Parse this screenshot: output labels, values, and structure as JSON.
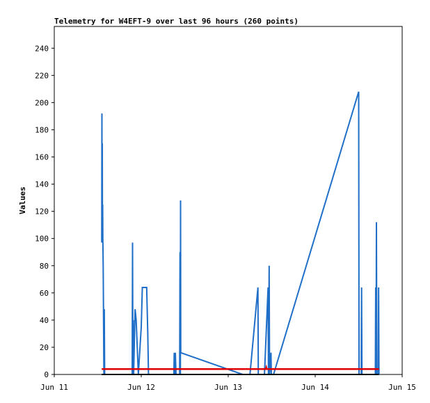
{
  "chart_data": {
    "type": "line",
    "title": "Telemetry for W4EFT-9 over last 96 hours (260 points)",
    "xlabel": "",
    "ylabel": "Values",
    "x_ticks": [
      "Jun 11",
      "Jun 12",
      "Jun 13",
      "Jun 14",
      "Jun 15"
    ],
    "y_ticks": [
      "0",
      "20",
      "40",
      "60",
      "80",
      "100",
      "120",
      "140",
      "160",
      "180",
      "200",
      "220",
      "240"
    ],
    "xlim": [
      0,
      96
    ],
    "ylim": [
      0,
      256
    ],
    "grid": false,
    "legend": "none",
    "series": [
      {
        "color": "#1f6fc8",
        "points": [
          [
            13.1,
            97
          ],
          [
            13.15,
            192
          ],
          [
            13.2,
            97
          ],
          [
            13.25,
            170
          ],
          [
            13.3,
            100
          ],
          [
            13.35,
            125
          ],
          [
            13.4,
            100
          ],
          [
            13.5,
            80
          ],
          [
            13.6,
            40
          ],
          [
            13.7,
            0
          ],
          [
            13.8,
            48
          ],
          [
            13.9,
            0
          ],
          [
            21.5,
            0
          ],
          [
            21.6,
            97
          ],
          [
            21.7,
            0
          ],
          [
            21.8,
            40
          ],
          [
            21.9,
            0
          ],
          [
            22.3,
            48
          ],
          [
            22.6,
            40
          ],
          [
            23.2,
            0
          ],
          [
            24.0,
            35
          ],
          [
            24.3,
            64
          ],
          [
            25.5,
            64
          ],
          [
            25.8,
            30
          ],
          [
            26.0,
            0
          ],
          [
            33.0,
            0
          ],
          [
            33.1,
            16
          ],
          [
            33.3,
            0
          ],
          [
            33.4,
            16
          ],
          [
            33.6,
            0
          ],
          [
            34.6,
            0
          ],
          [
            34.7,
            90
          ],
          [
            34.8,
            0
          ],
          [
            34.85,
            128
          ],
          [
            34.9,
            16
          ],
          [
            52.0,
            0
          ],
          [
            54.0,
            0
          ],
          [
            56.2,
            64
          ],
          [
            56.3,
            0
          ],
          [
            58.0,
            0
          ],
          [
            59.0,
            64
          ],
          [
            59.1,
            0
          ],
          [
            59.3,
            80
          ],
          [
            59.4,
            0
          ],
          [
            59.8,
            16
          ],
          [
            59.9,
            0
          ],
          [
            60.5,
            0
          ],
          [
            84.0,
            208
          ],
          [
            84.1,
            0
          ],
          [
            84.7,
            0
          ],
          [
            84.8,
            64
          ],
          [
            84.9,
            0
          ],
          [
            88.6,
            0
          ],
          [
            88.7,
            64
          ],
          [
            88.8,
            0
          ],
          [
            88.9,
            112
          ],
          [
            89.0,
            0
          ],
          [
            89.4,
            0
          ],
          [
            89.5,
            64
          ],
          [
            89.6,
            0
          ]
        ]
      },
      {
        "color": "#e00000",
        "points": [
          [
            13.1,
            4
          ],
          [
            58.4,
            4
          ],
          [
            58.5,
            5
          ],
          [
            58.6,
            4
          ],
          [
            89.6,
            4
          ]
        ]
      },
      {
        "color": "#000000",
        "points": [
          [
            13.1,
            0
          ],
          [
            89.6,
            0
          ]
        ]
      }
    ]
  }
}
